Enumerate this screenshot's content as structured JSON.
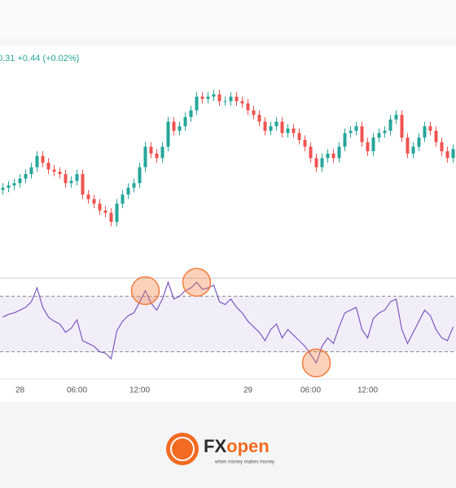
{
  "chart_data": {
    "type": "candlestick",
    "legend_text": "0.31 +0.44 (+0.02%)",
    "categories": [
      null,
      null,
      null,
      "28",
      null,
      null,
      null,
      null,
      null,
      null,
      null,
      null,
      null,
      "06:00",
      null,
      null,
      null,
      null,
      null,
      null,
      null,
      null,
      null,
      null,
      "12:00",
      null,
      null,
      null,
      null,
      null,
      null,
      null,
      null,
      null,
      null,
      null,
      null,
      null,
      null,
      null,
      null,
      null,
      null,
      "29",
      null,
      null,
      null,
      null,
      null,
      null,
      null,
      null,
      null,
      null,
      "06:00",
      null,
      null,
      null,
      null,
      null,
      null,
      null,
      null,
      null,
      "12:00",
      null,
      null,
      null,
      null,
      null,
      null,
      null,
      null,
      null,
      null,
      null,
      null,
      null,
      null,
      null
    ],
    "open": [
      38,
      39,
      40,
      41,
      43,
      45,
      48,
      53,
      50,
      47,
      46,
      45,
      41,
      42,
      45,
      36,
      34,
      32,
      29,
      28,
      24,
      32,
      36,
      39,
      41,
      48,
      57,
      54,
      52,
      57,
      68,
      64,
      66,
      70,
      73,
      79,
      78,
      79,
      80,
      77,
      77,
      79,
      77,
      76,
      73,
      71,
      68,
      64,
      66,
      68,
      63,
      65,
      63,
      60,
      57,
      52,
      48,
      52,
      54,
      52,
      57,
      63,
      64,
      66,
      59,
      55,
      61,
      63,
      64,
      69,
      71,
      61,
      54,
      57,
      61,
      66,
      64,
      59,
      55,
      52
    ],
    "close": [
      39,
      40,
      41,
      43,
      45,
      48,
      53,
      50,
      47,
      46,
      45,
      41,
      42,
      45,
      36,
      34,
      32,
      29,
      28,
      24,
      32,
      36,
      39,
      41,
      48,
      57,
      54,
      52,
      57,
      68,
      64,
      66,
      70,
      73,
      79,
      78,
      79,
      80,
      77,
      77,
      79,
      77,
      76,
      73,
      71,
      68,
      64,
      66,
      68,
      63,
      65,
      63,
      60,
      57,
      52,
      48,
      52,
      54,
      52,
      57,
      63,
      64,
      66,
      59,
      55,
      61,
      63,
      64,
      69,
      71,
      61,
      54,
      57,
      61,
      66,
      64,
      59,
      55,
      52,
      56
    ],
    "high": [
      41,
      42,
      43,
      45,
      47,
      50,
      55,
      55,
      52,
      49,
      48,
      47,
      44,
      47,
      47,
      38,
      36,
      34,
      31,
      30,
      34,
      38,
      41,
      43,
      50,
      59,
      59,
      56,
      59,
      70,
      70,
      68,
      72,
      75,
      81,
      81,
      81,
      82,
      82,
      79,
      81,
      81,
      79,
      78,
      75,
      73,
      70,
      68,
      70,
      70,
      67,
      67,
      65,
      62,
      59,
      54,
      54,
      56,
      56,
      59,
      65,
      66,
      68,
      68,
      61,
      63,
      65,
      66,
      71,
      73,
      73,
      63,
      59,
      63,
      68,
      68,
      66,
      61,
      57,
      58
    ],
    "low": [
      36,
      37,
      38,
      39,
      41,
      43,
      46,
      48,
      45,
      44,
      43,
      39,
      39,
      40,
      34,
      32,
      30,
      27,
      26,
      22,
      22,
      30,
      34,
      37,
      39,
      46,
      52,
      50,
      50,
      55,
      62,
      62,
      64,
      68,
      71,
      76,
      76,
      77,
      75,
      75,
      75,
      75,
      74,
      71,
      69,
      66,
      62,
      62,
      64,
      61,
      61,
      61,
      58,
      55,
      50,
      46,
      46,
      50,
      50,
      50,
      55,
      61,
      62,
      57,
      53,
      53,
      59,
      61,
      62,
      67,
      59,
      52,
      52,
      55,
      59,
      62,
      57,
      53,
      50,
      50
    ],
    "ylim": [
      0,
      100
    ],
    "up_color": "#26a69a",
    "down_color": "#ef5350",
    "rsi": [
      55,
      57,
      58,
      60,
      62,
      66,
      76,
      62,
      55,
      52,
      50,
      44,
      47,
      53,
      38,
      36,
      34,
      30,
      29,
      25,
      45,
      52,
      56,
      58,
      66,
      74,
      65,
      60,
      68,
      80,
      68,
      70,
      74,
      76,
      80,
      75,
      76,
      78,
      66,
      64,
      68,
      62,
      58,
      52,
      48,
      44,
      38,
      46,
      50,
      40,
      46,
      42,
      38,
      34,
      28,
      22,
      34,
      40,
      36,
      48,
      58,
      60,
      62,
      46,
      40,
      54,
      58,
      60,
      66,
      68,
      46,
      36,
      44,
      52,
      60,
      56,
      46,
      40,
      38,
      48
    ],
    "rsi_ylim": [
      11,
      83
    ],
    "rsi_levels": [
      70,
      30
    ],
    "rsi_color": "#7e57c2",
    "highlights": [
      25,
      34,
      55
    ],
    "highlight_color": "#f57c3a",
    "logo": {
      "brand_a": "FX",
      "brand_b": "open",
      "tagline": "when money makes money"
    }
  }
}
